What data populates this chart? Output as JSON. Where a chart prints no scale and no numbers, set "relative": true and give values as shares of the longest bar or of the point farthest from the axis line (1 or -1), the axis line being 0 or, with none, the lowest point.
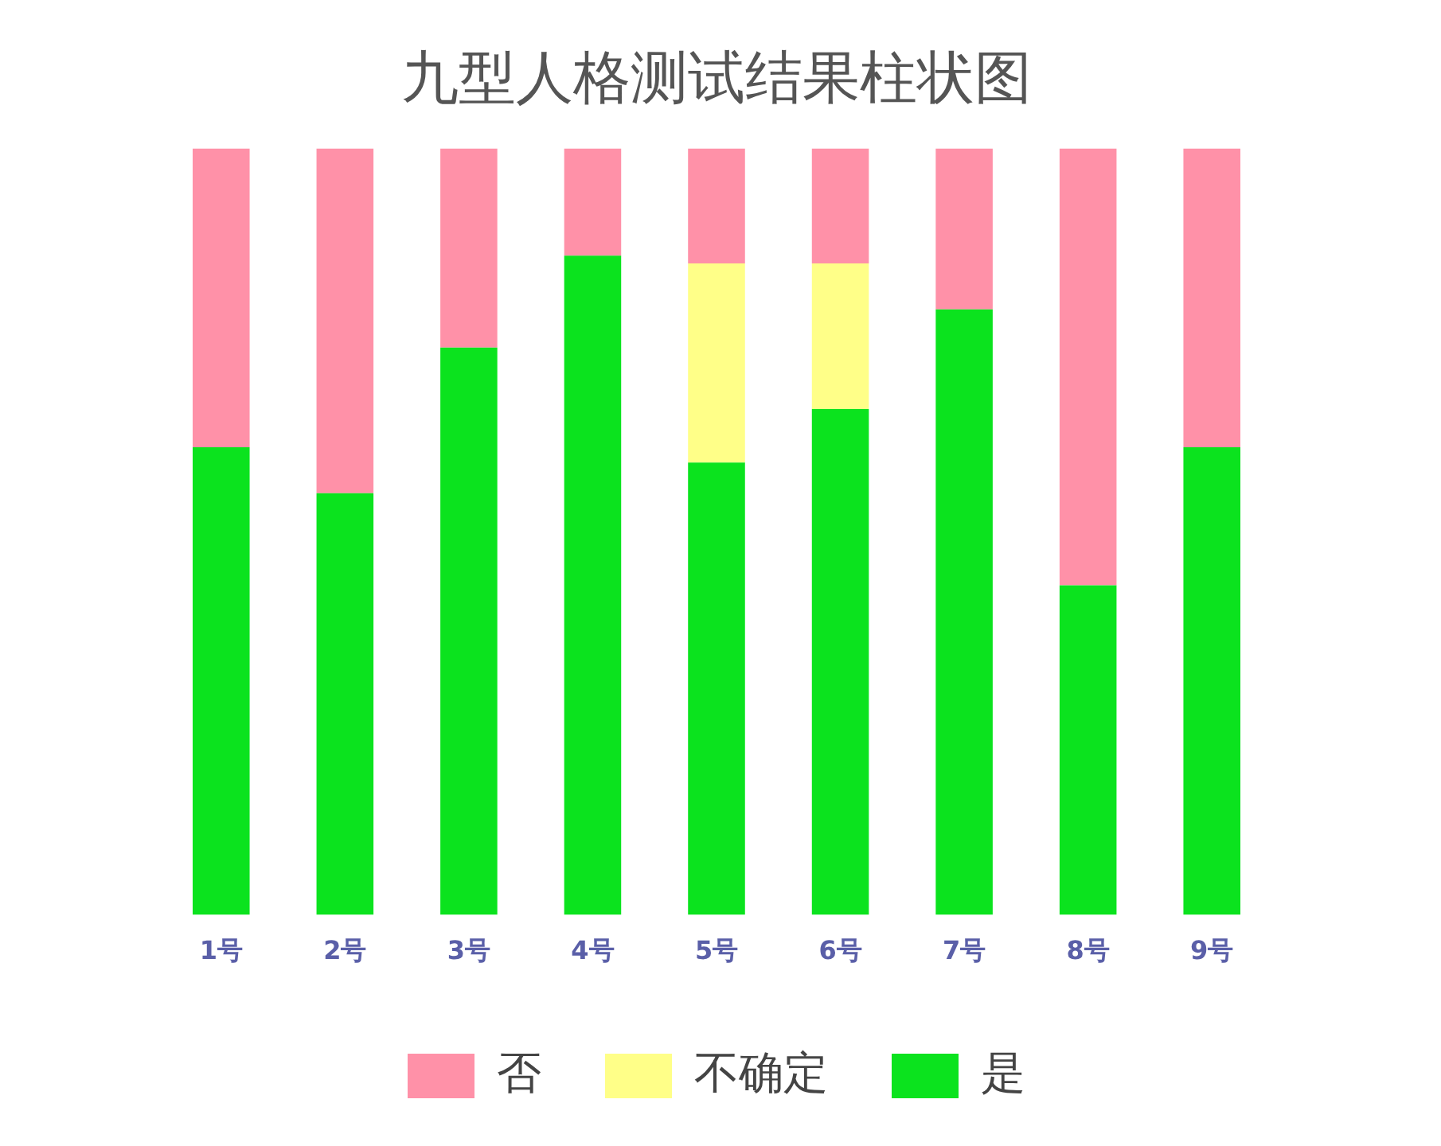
{
  "chart_data": {
    "type": "bar",
    "title": "九型人格测试结果柱状图",
    "categories": [
      "1号",
      "2号",
      "3号",
      "4号",
      "5号",
      "6号",
      "7号",
      "8号",
      "9号"
    ],
    "stacked": true,
    "relative": true,
    "grid": false,
    "legend": "bottom",
    "series": [
      {
        "name": "是",
        "color": "#0be31e",
        "values": [
          0.61,
          0.55,
          0.74,
          0.86,
          0.59,
          0.66,
          0.79,
          0.43,
          0.61
        ]
      },
      {
        "name": "不确定",
        "color": "#ffff88",
        "values": [
          0,
          0,
          0,
          0,
          0.26,
          0.19,
          0,
          0,
          0
        ]
      },
      {
        "name": "否",
        "color": "#ff91a8",
        "values": [
          0.39,
          0.45,
          0.26,
          0.14,
          0.15,
          0.15,
          0.21,
          0.57,
          0.39
        ]
      }
    ]
  }
}
